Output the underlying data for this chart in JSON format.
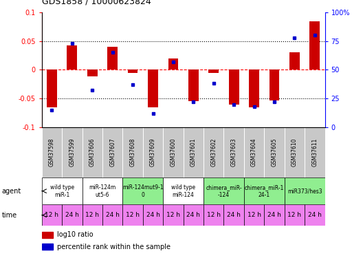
{
  "title": "GDS1858 / 10000623824",
  "samples": [
    "GSM37598",
    "GSM37599",
    "GSM37606",
    "GSM37607",
    "GSM37608",
    "GSM37609",
    "GSM37600",
    "GSM37601",
    "GSM37602",
    "GSM37603",
    "GSM37604",
    "GSM37605",
    "GSM37610",
    "GSM37611"
  ],
  "log10_ratio": [
    -0.065,
    0.043,
    -0.012,
    0.04,
    -0.005,
    -0.065,
    0.02,
    -0.055,
    -0.005,
    -0.06,
    -0.065,
    -0.054,
    0.03,
    0.085
  ],
  "percentile_rank": [
    15,
    73,
    32,
    65,
    37,
    12,
    57,
    22,
    38,
    20,
    18,
    22,
    78,
    80
  ],
  "ylim": [
    -0.1,
    0.1
  ],
  "yticks_left": [
    -0.1,
    -0.05,
    0.0,
    0.05,
    0.1
  ],
  "yticks_right": [
    0,
    25,
    50,
    75,
    100
  ],
  "dotted_lines": [
    -0.05,
    0.0,
    0.05
  ],
  "agent_groups": [
    {
      "label": "wild type\nmiR-1",
      "cols": [
        0,
        1
      ],
      "color": "#ffffff"
    },
    {
      "label": "miR-124m\nut5-6",
      "cols": [
        2,
        3
      ],
      "color": "#ffffff"
    },
    {
      "label": "miR-124mut9-1\n0",
      "cols": [
        4,
        5
      ],
      "color": "#90ee90"
    },
    {
      "label": "wild type\nmiR-124",
      "cols": [
        6,
        7
      ],
      "color": "#ffffff"
    },
    {
      "label": "chimera_miR-\n-124",
      "cols": [
        8,
        9
      ],
      "color": "#90ee90"
    },
    {
      "label": "chimera_miR-1\n24-1",
      "cols": [
        10,
        11
      ],
      "color": "#90ee90"
    },
    {
      "label": "miR373/hes3",
      "cols": [
        12,
        13
      ],
      "color": "#90ee90"
    }
  ],
  "time_labels": [
    "12 h",
    "24 h",
    "12 h",
    "24 h",
    "12 h",
    "24 h",
    "12 h",
    "24 h",
    "12 h",
    "24 h",
    "12 h",
    "24 h",
    "12 h",
    "24 h"
  ],
  "bar_color": "#cc0000",
  "dot_color": "#0000cc",
  "bg_color": "#ffffff",
  "sample_bg": "#c8c8c8",
  "time_bg": "#ee82ee",
  "agent_label_fontsize": 5.5,
  "sample_fontsize": 5.5,
  "time_fontsize": 6.5
}
